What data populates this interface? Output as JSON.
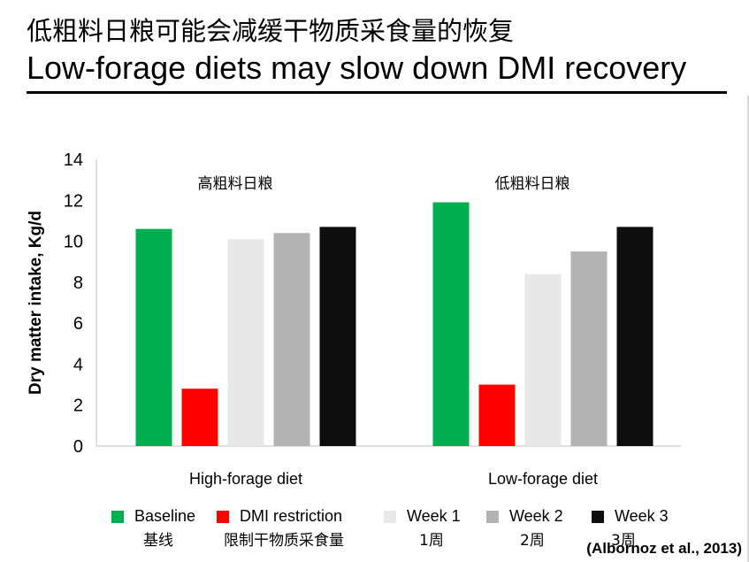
{
  "title": {
    "chinese": "低粗料日粮可能会减缓干物质采食量的恢复",
    "english": "Low-forage diets may slow down DMI recovery"
  },
  "chart_data": {
    "type": "bar",
    "ylabel": "Dry matter intake, Kg/d",
    "ylim": [
      0,
      14
    ],
    "yticks": [
      "0",
      "2",
      "4",
      "6",
      "8",
      "10",
      "12",
      "14"
    ],
    "categories": [
      "High-forage diet",
      "Low-forage diet"
    ],
    "category_annotations": [
      "高粗料日粮",
      "低粗料日粮"
    ],
    "series": [
      {
        "name": "Baseline",
        "name_cn": "基线",
        "color": "#00b050",
        "values": [
          10.6,
          11.9
        ]
      },
      {
        "name": "DMI restriction",
        "name_cn": "限制干物质采食量",
        "color": "#ff0000",
        "values": [
          2.8,
          3.0
        ]
      },
      {
        "name": "Week 1",
        "name_cn": "1周",
        "color": "#e8e8e8",
        "values": [
          10.1,
          8.4
        ]
      },
      {
        "name": "Week 2",
        "name_cn": "2周",
        "color": "#b3b3b3",
        "values": [
          10.4,
          9.5
        ]
      },
      {
        "name": "Week 3",
        "name_cn": "3周",
        "color": "#0d0d0d",
        "values": [
          10.7,
          10.7
        ]
      }
    ],
    "grid": false,
    "legend_position": "bottom"
  },
  "citation": "(Albornoz et al., 2013)"
}
